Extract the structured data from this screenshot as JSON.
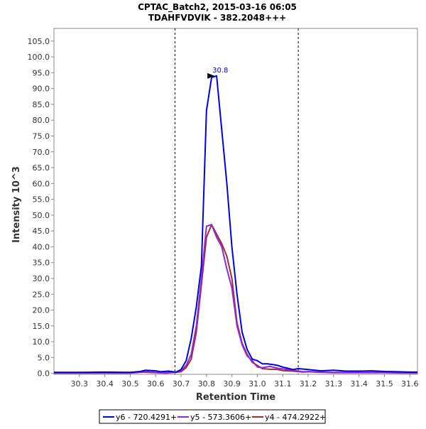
{
  "chart_data": {
    "type": "line",
    "title": "CPTAC_Batch2, 2015-03-16 06:05",
    "subtitle": "TDAHFVDVIK - 382.2048+++",
    "xlabel": "Retention Time",
    "ylabel": "Intensity 10^3",
    "xlim": [
      30.2,
      31.63
    ],
    "ylim": [
      -0.3,
      109.0
    ],
    "x_ticks": [
      "30.3",
      "30.4",
      "30.5",
      "30.6",
      "30.7",
      "30.8",
      "30.9",
      "31.0",
      "31.1",
      "31.2",
      "31.3",
      "31.4",
      "31.5",
      "31.6"
    ],
    "y_ticks": [
      "0.0",
      "5.0",
      "10.0",
      "15.0",
      "20.0",
      "25.0",
      "30.0",
      "35.0",
      "40.0",
      "45.0",
      "50.0",
      "55.0",
      "60.0",
      "65.0",
      "70.0",
      "75.0",
      "80.0",
      "85.0",
      "90.0",
      "95.0",
      "100.0",
      "105.0"
    ],
    "boundaries": [
      30.676,
      31.161
    ],
    "peak_annotation": {
      "label": "30.8",
      "x": 30.84,
      "y": 94.0,
      "color": "#0000cc"
    },
    "legend_position": "bottom-center",
    "series": [
      {
        "name": "y6 - 720.4291+",
        "color": "#0000e6",
        "x": [
          30.2,
          30.3,
          30.4,
          30.5,
          30.54,
          30.56,
          30.6,
          30.62,
          30.65,
          30.68,
          30.7,
          30.72,
          30.74,
          30.76,
          30.78,
          30.8,
          30.82,
          30.84,
          30.86,
          30.88,
          30.9,
          30.92,
          30.94,
          30.96,
          30.98,
          31.0,
          31.02,
          31.04,
          31.06,
          31.08,
          31.1,
          31.12,
          31.14,
          31.16,
          31.2,
          31.25,
          31.3,
          31.35,
          31.4,
          31.45,
          31.5,
          31.55,
          31.6,
          31.63
        ],
        "y": [
          0.3,
          0.3,
          0.4,
          0.3,
          0.6,
          1.0,
          0.8,
          0.5,
          0.7,
          0.4,
          1.2,
          4.0,
          11.0,
          21.0,
          34.0,
          83.0,
          93.5,
          94.0,
          77.0,
          60.0,
          40.0,
          25.0,
          13.0,
          7.5,
          4.5,
          4.0,
          3.0,
          3.0,
          2.8,
          2.5,
          2.0,
          1.6,
          1.2,
          1.5,
          1.2,
          0.8,
          1.0,
          0.7,
          0.7,
          0.8,
          0.6,
          0.5,
          0.4,
          0.4
        ]
      },
      {
        "name": "y5 - 573.3606+",
        "color": "#8a2be2",
        "x": [
          30.2,
          30.3,
          30.4,
          30.5,
          30.55,
          30.6,
          30.64,
          30.68,
          30.7,
          30.72,
          30.74,
          30.76,
          30.78,
          30.8,
          30.82,
          30.84,
          30.86,
          30.88,
          30.9,
          30.92,
          30.94,
          30.96,
          30.98,
          31.0,
          31.02,
          31.05,
          31.08,
          31.1,
          31.14,
          31.18,
          31.2,
          31.25,
          31.3,
          31.4,
          31.5,
          31.6,
          31.63
        ],
        "y": [
          0.2,
          0.2,
          0.2,
          0.2,
          0.6,
          0.3,
          0.2,
          0.4,
          0.8,
          2.5,
          6.0,
          15.0,
          30.0,
          46.5,
          47.0,
          43.0,
          40.0,
          33.0,
          27.0,
          15.0,
          9.0,
          5.5,
          4.0,
          2.0,
          1.8,
          2.2,
          1.6,
          1.4,
          1.0,
          0.5,
          0.6,
          0.4,
          0.3,
          0.3,
          0.3,
          0.2,
          0.2
        ]
      },
      {
        "name": "y4 - 474.2922+",
        "color": "#a52a2a",
        "x": [
          30.2,
          30.3,
          30.4,
          30.5,
          30.55,
          30.6,
          30.64,
          30.68,
          30.7,
          30.72,
          30.74,
          30.76,
          30.78,
          30.8,
          30.82,
          30.84,
          30.86,
          30.88,
          30.9,
          30.92,
          30.94,
          30.96,
          30.98,
          31.0,
          31.02,
          31.05,
          31.08,
          31.1,
          31.14,
          31.18,
          31.2,
          31.25,
          31.3,
          31.4,
          31.5,
          31.6,
          31.63
        ],
        "y": [
          0.1,
          0.1,
          0.1,
          0.1,
          0.4,
          0.2,
          0.1,
          0.3,
          0.5,
          1.8,
          4.5,
          13.0,
          28.0,
          43.0,
          47.0,
          44.0,
          41.0,
          37.0,
          30.0,
          16.0,
          9.5,
          6.0,
          3.5,
          2.5,
          1.5,
          1.3,
          1.2,
          0.9,
          0.7,
          0.4,
          0.5,
          0.3,
          0.2,
          0.2,
          0.2,
          0.1,
          0.1
        ]
      }
    ]
  }
}
